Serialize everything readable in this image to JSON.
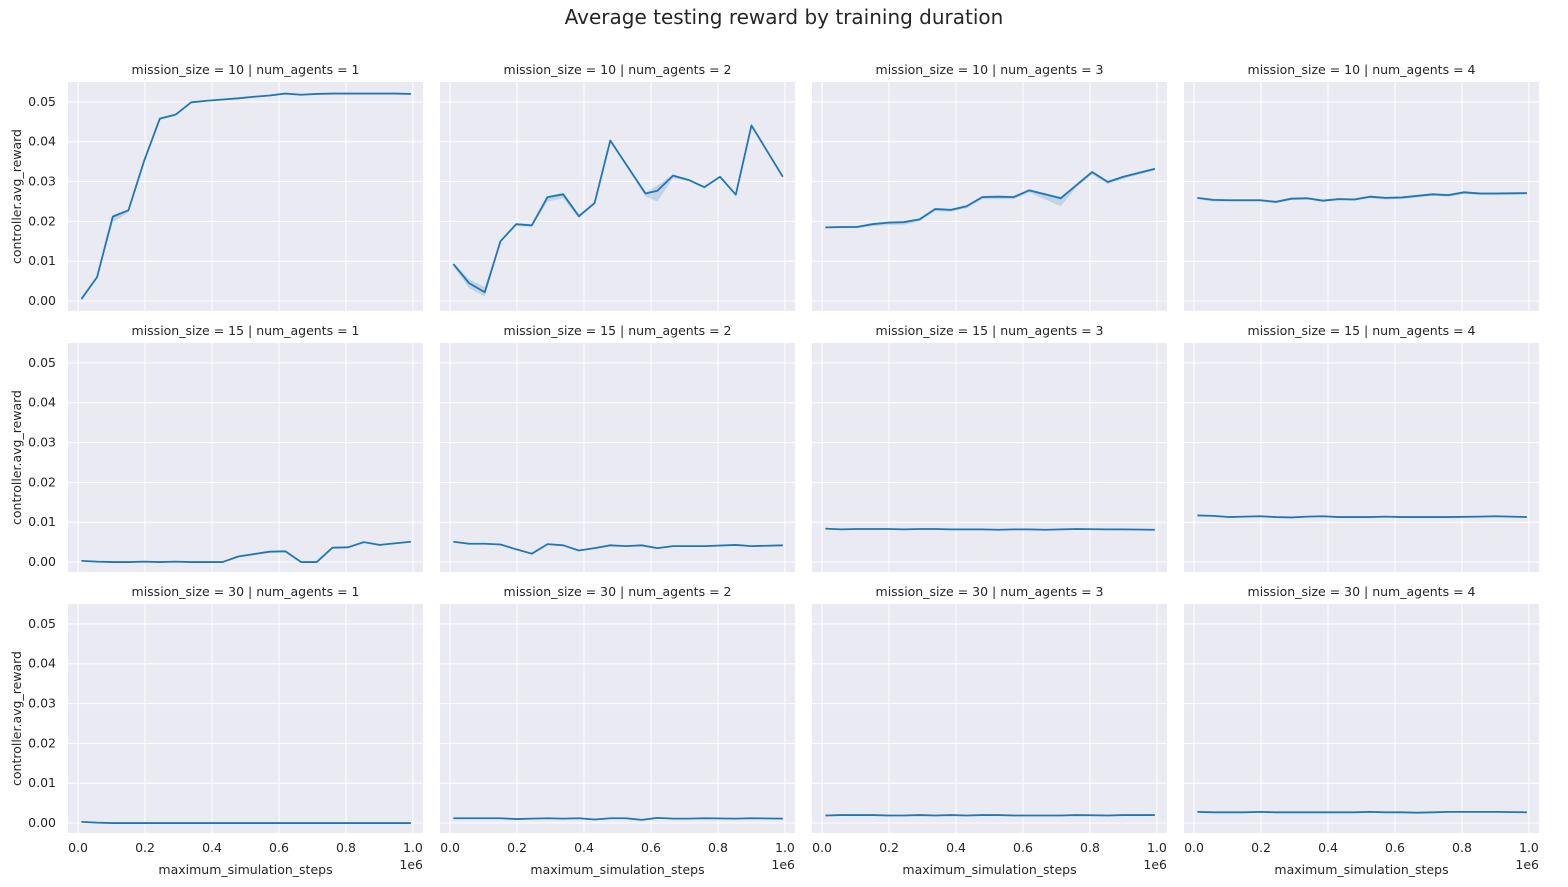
{
  "chart_data": {
    "type": "line",
    "title": "Average testing reward by training duration",
    "xlabel": "maximum_simulation_steps",
    "ylabel": "controller.avg_reward",
    "x_offset_label": "1e6",
    "xlim": [
      -0.03,
      1.03
    ],
    "ylim": [
      -0.0025,
      0.055
    ],
    "xticks": [
      "0.0",
      "0.2",
      "0.4",
      "0.6",
      "0.8",
      "1.0"
    ],
    "yticks": [
      "0.00",
      "0.01",
      "0.02",
      "0.03",
      "0.04",
      "0.05"
    ],
    "grid": true,
    "line_color": "#1f77b4",
    "band_color": "#1f77b4",
    "background": "#eaeaf2",
    "x": [
      0.01,
      0.0568,
      0.1037,
      0.1505,
      0.1974,
      0.2442,
      0.2911,
      0.3379,
      0.3847,
      0.4316,
      0.4784,
      0.5253,
      0.5721,
      0.6189,
      0.6658,
      0.7126,
      0.7595,
      0.8063,
      0.8532,
      0.9,
      0.9468,
      0.9937
    ],
    "panels": [
      {
        "title": "mission_size = 10 | num_agents = 1",
        "values": [
          0.0005,
          0.006,
          0.0212,
          0.0228,
          0.0352,
          0.0458,
          0.0468,
          0.0499,
          0.0503,
          0.0506,
          0.0509,
          0.0513,
          0.0516,
          0.0521,
          0.0518,
          0.052,
          0.0521,
          0.0521,
          0.0521,
          0.0521,
          0.0521,
          0.052
        ],
        "lower": [
          0.0005,
          0.006,
          0.0198,
          0.0222,
          0.035,
          0.0455,
          0.0466,
          0.0497,
          0.0502,
          0.0505,
          0.0508,
          0.0512,
          0.0515,
          0.052,
          0.0517,
          0.0519,
          0.052,
          0.052,
          0.052,
          0.052,
          0.052,
          0.0519
        ],
        "upper": [
          0.0005,
          0.006,
          0.0216,
          0.023,
          0.0354,
          0.046,
          0.047,
          0.0501,
          0.0504,
          0.0507,
          0.051,
          0.0514,
          0.0517,
          0.0522,
          0.0519,
          0.0521,
          0.0522,
          0.0522,
          0.0522,
          0.0522,
          0.0522,
          0.0521
        ]
      },
      {
        "title": "mission_size = 10 | num_agents = 2",
        "values": [
          0.0093,
          0.0045,
          0.0022,
          0.015,
          0.0193,
          0.019,
          0.0261,
          0.0268,
          0.0213,
          0.0246,
          0.0403,
          0.027,
          0.0277,
          0.0315,
          0.0304,
          0.0286,
          0.0312,
          0.0267,
          0.0441,
          0.0312
        ],
        "x_override": [
          0.01,
          0.0568,
          0.1037,
          0.1505,
          0.1974,
          0.2442,
          0.2911,
          0.3379,
          0.3847,
          0.4316,
          0.4784,
          0.5837,
          0.6189,
          0.6658,
          0.7126,
          0.7595,
          0.8063,
          0.8532,
          0.9,
          0.9937
        ],
        "lower": [
          0.0088,
          0.0032,
          0.0012,
          0.0148,
          0.0188,
          0.0186,
          0.025,
          0.0258,
          0.0208,
          0.0243,
          0.0402,
          0.0262,
          0.025,
          0.0308,
          0.0302,
          0.0284,
          0.0309,
          0.0264,
          0.044,
          0.031
        ],
        "upper": [
          0.0095,
          0.0055,
          0.0035,
          0.0152,
          0.0195,
          0.0193,
          0.0263,
          0.0272,
          0.0216,
          0.0249,
          0.0404,
          0.0272,
          0.029,
          0.0318,
          0.0306,
          0.0288,
          0.0314,
          0.027,
          0.0442,
          0.0314
        ]
      },
      {
        "title": "mission_size = 10 | num_agents = 3",
        "values": [
          0.0185,
          0.0186,
          0.0186,
          0.0193,
          0.0197,
          0.0198,
          0.0205,
          0.0231,
          0.0229,
          0.0238,
          0.0261,
          0.0262,
          0.0261,
          0.0278,
          0.0258,
          0.0291,
          0.0324,
          0.0299,
          0.0312,
          0.0332
        ],
        "x_override": [
          0.01,
          0.0568,
          0.1037,
          0.1505,
          0.1974,
          0.2442,
          0.2911,
          0.3379,
          0.3847,
          0.4316,
          0.4784,
          0.5253,
          0.5721,
          0.6189,
          0.7126,
          0.7595,
          0.8063,
          0.8532,
          0.9,
          0.9937
        ],
        "lower": [
          0.0182,
          0.0183,
          0.0183,
          0.0188,
          0.0191,
          0.0192,
          0.02,
          0.0226,
          0.0224,
          0.0233,
          0.0256,
          0.0256,
          0.0256,
          0.0273,
          0.0238,
          0.0286,
          0.0318,
          0.0294,
          0.0307,
          0.0328
        ],
        "upper": [
          0.0187,
          0.0188,
          0.0188,
          0.0196,
          0.02,
          0.0201,
          0.0208,
          0.0234,
          0.0232,
          0.0241,
          0.0264,
          0.0265,
          0.0264,
          0.0281,
          0.0262,
          0.0294,
          0.0327,
          0.0302,
          0.0315,
          0.0335
        ]
      },
      {
        "title": "mission_size = 10 | num_agents = 4",
        "values": [
          0.0259,
          0.0254,
          0.0253,
          0.0253,
          0.0253,
          0.0249,
          0.0257,
          0.0258,
          0.0252,
          0.0256,
          0.0255,
          0.0262,
          0.0259,
          0.026,
          0.0268,
          0.0266,
          0.0273,
          0.027,
          0.027,
          0.0271
        ],
        "x_override": [
          0.01,
          0.0568,
          0.1037,
          0.1505,
          0.1974,
          0.2442,
          0.2911,
          0.3379,
          0.3847,
          0.4316,
          0.4784,
          0.5253,
          0.5721,
          0.6189,
          0.7126,
          0.7595,
          0.8063,
          0.8532,
          0.9,
          0.9937
        ],
        "lower": [
          0.0256,
          0.025,
          0.025,
          0.025,
          0.025,
          0.0246,
          0.0254,
          0.0255,
          0.0249,
          0.0253,
          0.0252,
          0.0258,
          0.0255,
          0.0256,
          0.0264,
          0.0262,
          0.0269,
          0.0266,
          0.0266,
          0.0267
        ],
        "upper": [
          0.0261,
          0.0257,
          0.0256,
          0.0256,
          0.0256,
          0.0252,
          0.026,
          0.0261,
          0.0255,
          0.0259,
          0.0258,
          0.0265,
          0.0262,
          0.0263,
          0.0271,
          0.0269,
          0.0276,
          0.0273,
          0.0273,
          0.0274
        ]
      },
      {
        "title": "mission_size = 15 | num_agents = 1",
        "values": [
          0.0003,
          0.0001,
          0.0,
          0.0,
          0.0001,
          0.0,
          0.0001,
          0.0,
          0.0,
          0.0,
          0.0014,
          0.0026,
          0.0027,
          0.0,
          0.0,
          0.0036,
          0.0037,
          0.005,
          0.0043,
          0.0051
        ],
        "x_override": [
          0.01,
          0.0568,
          0.1037,
          0.1505,
          0.1974,
          0.2442,
          0.2911,
          0.3379,
          0.3847,
          0.4316,
          0.4784,
          0.5721,
          0.6189,
          0.6658,
          0.7126,
          0.7595,
          0.8063,
          0.8532,
          0.9,
          0.9937
        ]
      },
      {
        "title": "mission_size = 15 | num_agents = 2",
        "values": [
          0.0051,
          0.0046,
          0.0046,
          0.0044,
          0.0032,
          0.0021,
          0.0045,
          0.0042,
          0.0029,
          0.0035,
          0.0042,
          0.004,
          0.0042,
          0.0035,
          0.004,
          0.004,
          0.004,
          0.0043,
          0.004,
          0.0042
        ],
        "x_override": [
          0.01,
          0.0568,
          0.1037,
          0.1505,
          0.1974,
          0.2442,
          0.2911,
          0.3379,
          0.3847,
          0.4316,
          0.4784,
          0.5253,
          0.5721,
          0.6189,
          0.6658,
          0.7126,
          0.7595,
          0.8532,
          0.9,
          0.9937
        ]
      },
      {
        "title": "mission_size = 15 | num_agents = 3",
        "values": [
          0.0084,
          0.0082,
          0.0083,
          0.0083,
          0.0083,
          0.0082,
          0.0083,
          0.0083,
          0.0082,
          0.0082,
          0.0082,
          0.0081,
          0.0082,
          0.0082,
          0.0081,
          0.0082,
          0.0083,
          0.0082,
          0.0082,
          0.0081
        ],
        "x_override": [
          0.01,
          0.0568,
          0.1037,
          0.1505,
          0.1974,
          0.2442,
          0.2911,
          0.3379,
          0.3847,
          0.4316,
          0.4784,
          0.5253,
          0.5721,
          0.6189,
          0.6658,
          0.7126,
          0.7595,
          0.8532,
          0.9,
          0.9937
        ]
      },
      {
        "title": "mission_size = 15 | num_agents = 4",
        "values": [
          0.0117,
          0.0116,
          0.0113,
          0.0114,
          0.0115,
          0.0113,
          0.0112,
          0.0114,
          0.0115,
          0.0113,
          0.0113,
          0.0113,
          0.0114,
          0.0113,
          0.0113,
          0.0113,
          0.0113,
          0.0114,
          0.0115,
          0.0113
        ],
        "x_override": [
          0.01,
          0.0568,
          0.1037,
          0.1505,
          0.1974,
          0.2442,
          0.2911,
          0.3379,
          0.3847,
          0.4316,
          0.4784,
          0.5253,
          0.5721,
          0.6189,
          0.6658,
          0.7126,
          0.7595,
          0.8532,
          0.9,
          0.9937
        ]
      },
      {
        "title": "mission_size = 30 | num_agents = 1",
        "values": [
          0.0003,
          0.0001,
          0.0,
          0.0,
          0.0,
          0.0,
          0.0,
          0.0,
          0.0,
          0.0,
          0.0,
          0.0,
          0.0,
          0.0,
          0.0,
          0.0,
          0.0,
          0.0,
          0.0,
          0.0
        ],
        "x_override": [
          0.01,
          0.0568,
          0.1037,
          0.1505,
          0.1974,
          0.2442,
          0.2911,
          0.3379,
          0.3847,
          0.4316,
          0.4784,
          0.5253,
          0.5721,
          0.6189,
          0.6658,
          0.7126,
          0.7595,
          0.8532,
          0.9,
          0.9937
        ]
      },
      {
        "title": "mission_size = 30 | num_agents = 2",
        "values": [
          0.0012,
          0.0012,
          0.0012,
          0.0012,
          0.001,
          0.0011,
          0.0012,
          0.0011,
          0.0012,
          0.0009,
          0.0012,
          0.0012,
          0.0008,
          0.0013,
          0.0011,
          0.0011,
          0.0012,
          0.0011,
          0.0012,
          0.0011
        ],
        "x_override": [
          0.01,
          0.0568,
          0.1037,
          0.1505,
          0.1974,
          0.2442,
          0.2911,
          0.3379,
          0.3847,
          0.4316,
          0.4784,
          0.5253,
          0.5721,
          0.6189,
          0.6658,
          0.7126,
          0.7595,
          0.8532,
          0.9,
          0.9937
        ]
      },
      {
        "title": "mission_size = 30 | num_agents = 3",
        "values": [
          0.0019,
          0.002,
          0.002,
          0.002,
          0.0019,
          0.0019,
          0.002,
          0.0019,
          0.002,
          0.0019,
          0.002,
          0.002,
          0.0019,
          0.0019,
          0.0019,
          0.0019,
          0.002,
          0.0019,
          0.002,
          0.002
        ],
        "x_override": [
          0.01,
          0.0568,
          0.1037,
          0.1505,
          0.1974,
          0.2442,
          0.2911,
          0.3379,
          0.3847,
          0.4316,
          0.4784,
          0.5253,
          0.5721,
          0.6189,
          0.6658,
          0.7126,
          0.7595,
          0.8532,
          0.9,
          0.9937
        ]
      },
      {
        "title": "mission_size = 30 | num_agents = 4",
        "values": [
          0.0028,
          0.0027,
          0.0027,
          0.0027,
          0.0028,
          0.0027,
          0.0027,
          0.0027,
          0.0027,
          0.0027,
          0.0027,
          0.0028,
          0.0027,
          0.0027,
          0.0026,
          0.0027,
          0.0028,
          0.0028,
          0.0028,
          0.0027
        ],
        "x_override": [
          0.01,
          0.0568,
          0.1037,
          0.1505,
          0.1974,
          0.2442,
          0.2911,
          0.3379,
          0.3847,
          0.4316,
          0.4784,
          0.5253,
          0.5721,
          0.6189,
          0.6658,
          0.7126,
          0.7595,
          0.8532,
          0.9,
          0.9937
        ]
      }
    ]
  }
}
